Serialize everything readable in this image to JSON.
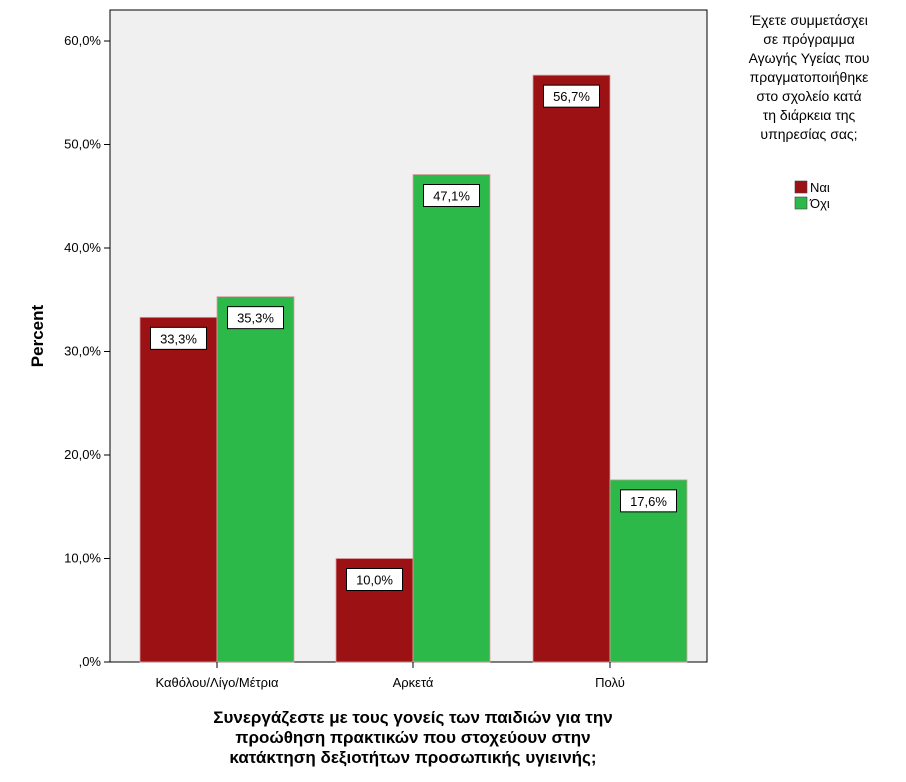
{
  "chart_data": {
    "type": "bar",
    "categories": [
      "Καθόλου/Λίγο/Μέτρια",
      "Αρκετά",
      "Πολύ"
    ],
    "series": [
      {
        "name": "Ναι",
        "color": "#9b1114",
        "values": [
          33.3,
          10.0,
          56.7
        ],
        "labels": [
          "33,3%",
          "10,0%",
          "56,7%"
        ]
      },
      {
        "name": "Όχι",
        "color": "#2db84a",
        "values": [
          35.3,
          47.1,
          17.6
        ],
        "labels": [
          "35,3%",
          "47,1%",
          "17,6%"
        ]
      }
    ],
    "ylabel": "Percent",
    "xlabel_lines": [
      "Συνεργάζεστε με τους γονείς των παιδιών για την",
      "προώθηση πρακτικών που στοχεύουν στην",
      "κατάκτηση δεξιοτήτων προσωπικής υγιεινής;"
    ],
    "yticks": [
      0,
      10,
      20,
      30,
      40,
      50,
      60
    ],
    "ytick_labels": [
      ",0%",
      "10,0%",
      "20,0%",
      "30,0%",
      "40,0%",
      "50,0%",
      "60,0%"
    ],
    "ylim": [
      0,
      64
    ],
    "legend": {
      "title_lines": [
        "Έχετε συμμετάσχει",
        "σε πρόγραμμα",
        "Αγωγής Υγείας που",
        "πραγματοποιήθηκε",
        "στο σχολείο κατά",
        "τη διάρκεια της",
        "υπηρεσίας σας;"
      ],
      "position": "right"
    },
    "grid": false,
    "plot_background": "#f0f0f0"
  }
}
